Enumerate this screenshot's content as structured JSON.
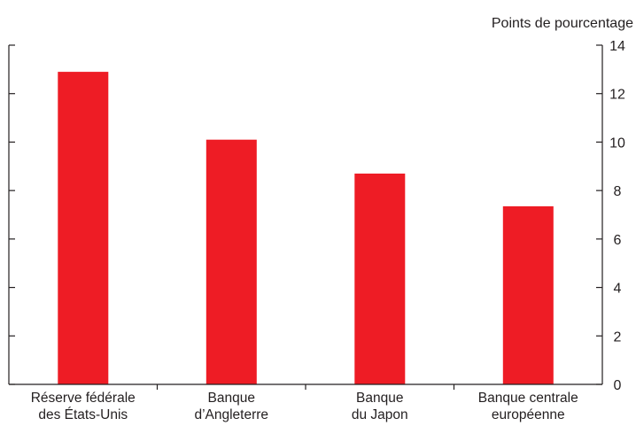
{
  "chart_data": {
    "type": "bar",
    "title": "",
    "ylabel": "Points de pourcentage",
    "xlabel": "",
    "categories": [
      [
        "Réserve fédérale",
        "des États-Unis"
      ],
      [
        "Banque",
        "d’Angleterre"
      ],
      [
        "Banque",
        "du Japon"
      ],
      [
        "Banque centrale",
        "européenne"
      ]
    ],
    "values": [
      12.9,
      10.1,
      8.7,
      7.35
    ],
    "ylim": [
      0,
      14
    ],
    "yticks": [
      0,
      2,
      4,
      6,
      8,
      10,
      12,
      14
    ],
    "y_axis_side": "right",
    "grid": false,
    "legend": "none",
    "bar_color": "#ee1c25",
    "axis_color": "#231f20"
  }
}
